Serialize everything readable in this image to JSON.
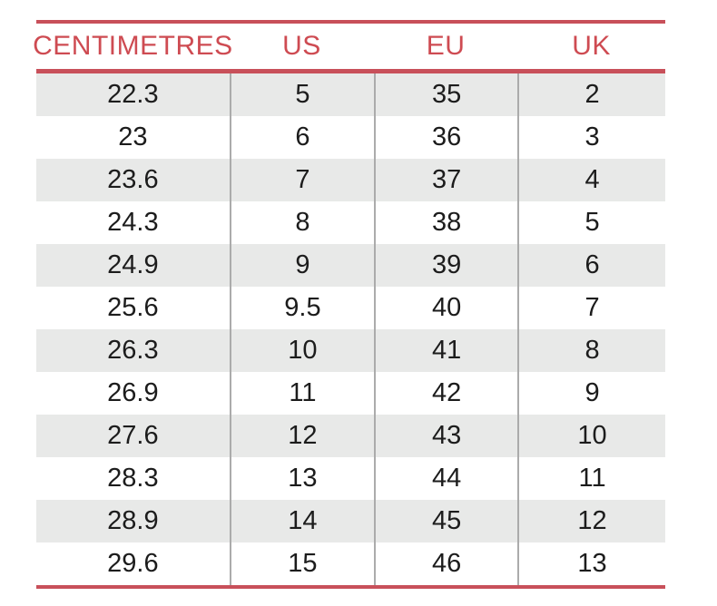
{
  "chart_data": {
    "type": "table",
    "title": "",
    "columns": [
      "CENTIMETRES",
      "US",
      "EU",
      "UK"
    ],
    "rows": [
      [
        "22.3",
        "5",
        "35",
        "2"
      ],
      [
        "23",
        "6",
        "36",
        "3"
      ],
      [
        "23.6",
        "7",
        "37",
        "4"
      ],
      [
        "24.3",
        "8",
        "38",
        "5"
      ],
      [
        "24.9",
        "9",
        "39",
        "6"
      ],
      [
        "25.6",
        "9.5",
        "40",
        "7"
      ],
      [
        "26.3",
        "10",
        "41",
        "8"
      ],
      [
        "26.9",
        "11",
        "42",
        "9"
      ],
      [
        "27.6",
        "12",
        "43",
        "10"
      ],
      [
        "28.3",
        "13",
        "44",
        "11"
      ],
      [
        "28.9",
        "14",
        "45",
        "12"
      ],
      [
        "29.6",
        "15",
        "46",
        "13"
      ]
    ],
    "layout": {
      "grid": "horizontal-zebra",
      "zebra_start": "gray"
    }
  },
  "colors": {
    "accent_rule_red": "#c8505a",
    "header_text_red": "#ce4b52",
    "row_alt_gray": "#e8e9e8",
    "row_white": "#ffffff",
    "column_divider_gray": "#ababab",
    "body_text": "#1c1c1c",
    "background": "#ffffff"
  }
}
